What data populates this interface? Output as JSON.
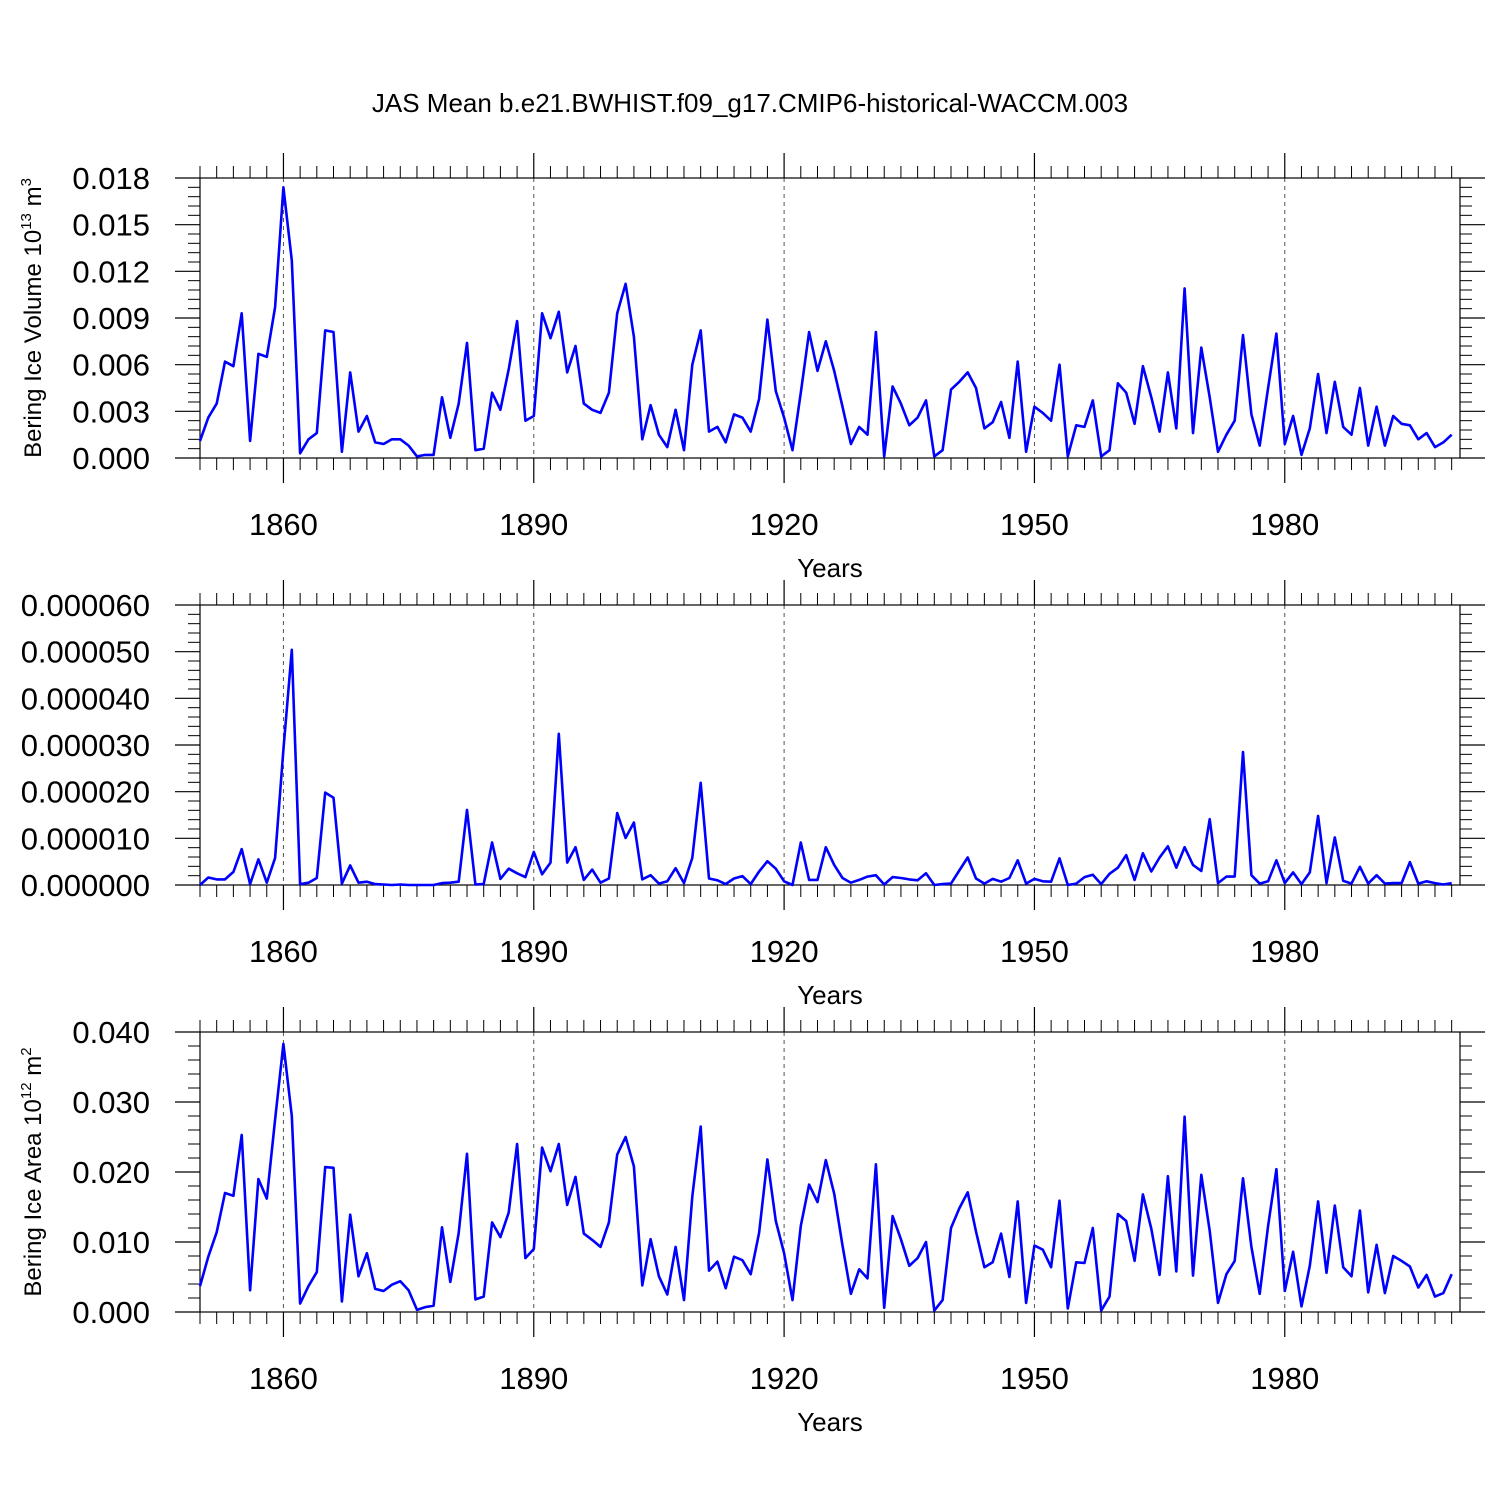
{
  "title": "JAS Mean b.e21.BWHIST.f09_g17.CMIP6-historical-WACCM.003",
  "colors": {
    "line": "#0000ff",
    "axis": "#000000",
    "grid": "#555555"
  },
  "chart_data": [
    {
      "type": "line",
      "ylabel": {
        "text": "Bering Ice Volume 10",
        "exp": "13",
        "unit": " m",
        "unit_exp": "3"
      },
      "xlabel": "Years",
      "xlim": [
        1850,
        2001
      ],
      "ylim": [
        0,
        0.018
      ],
      "xticks": [
        1860,
        1890,
        1920,
        1950,
        1980
      ],
      "xtick_labels": [
        "1860",
        "1890",
        "1920",
        "1950",
        "1980"
      ],
      "yticks": [
        0,
        0.003,
        0.006,
        0.009,
        0.012,
        0.015,
        0.018
      ],
      "ytick_labels": [
        "0.000",
        "0.003",
        "0.006",
        "0.009",
        "0.012",
        "0.015",
        "0.018"
      ],
      "grid": "dashed vertical at major x ticks",
      "x_start": 1850,
      "series": [
        {
          "values": [
            0.0011,
            0.0026,
            0.0035,
            0.0062,
            0.0059,
            0.0093,
            0.0011,
            0.0067,
            0.0065,
            0.0097,
            0.0174,
            0.0127,
            0.0003,
            0.0012,
            0.0016,
            0.0082,
            0.0081,
            0.0004,
            0.0055,
            0.0017,
            0.0027,
            0.001,
            0.0009,
            0.0012,
            0.0012,
            0.0008,
            0.0001,
            0.0002,
            0.0002,
            0.0039,
            0.0013,
            0.0035,
            0.0074,
            0.0005,
            0.0006,
            0.0042,
            0.0031,
            0.0057,
            0.0088,
            0.0024,
            0.0027,
            0.0093,
            0.0077,
            0.0094,
            0.0055,
            0.0072,
            0.0035,
            0.0031,
            0.0029,
            0.0042,
            0.0093,
            0.0112,
            0.0078,
            0.0012,
            0.0034,
            0.0015,
            0.0007,
            0.0031,
            0.0005,
            0.006,
            0.0082,
            0.0017,
            0.002,
            0.001,
            0.0028,
            0.0026,
            0.0017,
            0.0038,
            0.0089,
            0.0043,
            0.0026,
            0.0005,
            0.0042,
            0.0081,
            0.0056,
            0.0075,
            0.0056,
            0.0033,
            0.0009,
            0.002,
            0.0015,
            0.0081,
            0.0001,
            0.0046,
            0.0035,
            0.0021,
            0.0026,
            0.0037,
            0.0001,
            0.0005,
            0.0044,
            0.0049,
            0.0055,
            0.0045,
            0.0019,
            0.0023,
            0.0036,
            0.0013,
            0.0062,
            0.0004,
            0.0033,
            0.0029,
            0.0024,
            0.006,
            0.0001,
            0.0021,
            0.002,
            0.0037,
            0.0001,
            0.0005,
            0.0048,
            0.0042,
            0.0022,
            0.0059,
            0.0039,
            0.0017,
            0.0055,
            0.0019,
            0.0109,
            0.0016,
            0.0071,
            0.0039,
            0.0004,
            0.0015,
            0.0024,
            0.0079,
            0.0028,
            0.0008,
            0.0045,
            0.008,
            0.0009,
            0.0027,
            0.0002,
            0.0019,
            0.0054,
            0.0016,
            0.0049,
            0.002,
            0.0015,
            0.0045,
            0.0008,
            0.0033,
            0.0008,
            0.0027,
            0.0022,
            0.0021,
            0.0012,
            0.0016,
            0.0007,
            0.001,
            0.0015
          ]
        }
      ]
    },
    {
      "type": "line",
      "ylabel": null,
      "xlabel": "Years",
      "xlim": [
        1850,
        2001
      ],
      "ylim": [
        0,
        6e-05
      ],
      "xticks": [
        1860,
        1890,
        1920,
        1950,
        1980
      ],
      "xtick_labels": [
        "1860",
        "1890",
        "1920",
        "1950",
        "1980"
      ],
      "yticks": [
        0,
        1e-05,
        2e-05,
        3e-05,
        4e-05,
        5e-05,
        6e-05
      ],
      "ytick_labels": [
        "0.000000",
        "0.000010",
        "0.000020",
        "0.000030",
        "0.000040",
        "0.000050",
        "0.000060"
      ],
      "grid": "dashed vertical at major x ticks",
      "x_start": 1850,
      "series": [
        {
          "values": [
            0.0,
            1.6e-06,
            1.2e-06,
            1.2e-06,
            2.8e-06,
            7.7e-06,
            2e-07,
            5.5e-06,
            5e-07,
            5.8e-06,
            2.9e-05,
            5.04e-05,
            2e-07,
            5e-07,
            1.5e-06,
            1.98e-05,
            1.87e-05,
            3e-07,
            4.2e-06,
            5e-07,
            7e-07,
            2e-07,
            1e-07,
            0.0,
            1e-07,
            0.0,
            0.0,
            0.0,
            0.0,
            4e-07,
            5e-07,
            7e-07,
            1.61e-05,
            1e-07,
            2e-07,
            9.1e-06,
            1.3e-06,
            3.5e-06,
            2.5e-06,
            1.7e-06,
            7.1e-06,
            2.3e-06,
            4.8e-06,
            3.24e-05,
            4.8e-06,
            8.1e-06,
            1.1e-06,
            3.3e-06,
            5e-07,
            1.4e-06,
            1.54e-05,
            1.01e-05,
            1.34e-05,
            1.2e-06,
            2.1e-06,
            3e-07,
            8e-07,
            3.6e-06,
            4e-07,
            5.8e-06,
            2.19e-05,
            1.4e-06,
            1e-06,
            2e-07,
            1.4e-06,
            1.9e-06,
            2e-07,
            2.9e-06,
            5.1e-06,
            3.5e-06,
            8e-07,
            0.0,
            9.1e-06,
            1.1e-06,
            1.1e-06,
            8.1e-06,
            4.3e-06,
            1.5e-06,
            5e-07,
            1.1e-06,
            1.8e-06,
            2.1e-06,
            1e-07,
            1.7e-06,
            1.5e-06,
            1.2e-06,
            1e-06,
            2.5e-06,
            0.0,
            2e-07,
            3e-07,
            3.1e-06,
            5.9e-06,
            1.4e-06,
            3e-07,
            1.3e-06,
            7e-07,
            1.5e-06,
            5.3e-06,
            3e-07,
            1.3e-06,
            8e-07,
            7e-07,
            5.7e-06,
            0.0,
            3e-07,
            1.7e-06,
            2.2e-06,
            2e-07,
            2.4e-06,
            3.7e-06,
            6.4e-06,
            1.1e-06,
            6.8e-06,
            2.9e-06,
            5.9e-06,
            8.3e-06,
            3.7e-06,
            8.1e-06,
            4.3e-06,
            3e-06,
            1.41e-05,
            4e-07,
            1.8e-06,
            1.8e-06,
            2.85e-05,
            2.1e-06,
            3e-07,
            8e-07,
            5.3e-06,
            4e-07,
            2.7e-06,
            2e-07,
            2.7e-06,
            1.48e-05,
            4e-07,
            1.02e-05,
            9e-07,
            3e-07,
            3.9e-06,
            3e-07,
            2.1e-06,
            3e-07,
            4e-07,
            4e-07,
            4.9e-06,
            3e-07,
            8e-07,
            4e-07,
            1e-07,
            4e-07
          ]
        }
      ]
    },
    {
      "type": "line",
      "ylabel": {
        "text": "Bering Ice Area 10",
        "exp": "12",
        "unit": " m",
        "unit_exp": "2"
      },
      "xlabel": "Years",
      "xlim": [
        1850,
        2001
      ],
      "ylim": [
        0,
        0.04
      ],
      "xticks": [
        1860,
        1890,
        1920,
        1950,
        1980
      ],
      "xtick_labels": [
        "1860",
        "1890",
        "1920",
        "1950",
        "1980"
      ],
      "yticks": [
        0,
        0.01,
        0.02,
        0.03,
        0.04
      ],
      "ytick_labels": [
        "0.000",
        "0.010",
        "0.020",
        "0.030",
        "0.040"
      ],
      "grid": "dashed vertical at major x ticks",
      "x_start": 1850,
      "series": [
        {
          "values": [
            0.0037,
            0.0079,
            0.0114,
            0.017,
            0.0166,
            0.0253,
            0.0031,
            0.019,
            0.0162,
            0.0275,
            0.0383,
            0.028,
            0.0012,
            0.0037,
            0.0057,
            0.0207,
            0.0206,
            0.0015,
            0.0139,
            0.0051,
            0.0084,
            0.0033,
            0.003,
            0.0039,
            0.0044,
            0.0031,
            0.0003,
            0.0007,
            0.0009,
            0.0121,
            0.0043,
            0.0113,
            0.0226,
            0.0018,
            0.0022,
            0.0128,
            0.0107,
            0.0142,
            0.024,
            0.0077,
            0.009,
            0.0235,
            0.0201,
            0.024,
            0.0153,
            0.0193,
            0.0112,
            0.0103,
            0.0093,
            0.0128,
            0.0225,
            0.025,
            0.0208,
            0.0038,
            0.0104,
            0.0051,
            0.0025,
            0.0093,
            0.0017,
            0.0165,
            0.0265,
            0.0059,
            0.0072,
            0.0034,
            0.0079,
            0.0074,
            0.0054,
            0.0113,
            0.0218,
            0.013,
            0.0084,
            0.0017,
            0.0123,
            0.0182,
            0.0157,
            0.0217,
            0.0169,
            0.0095,
            0.0026,
            0.0061,
            0.0048,
            0.0211,
            0.0006,
            0.0137,
            0.0104,
            0.0066,
            0.0077,
            0.01,
            0.0002,
            0.0017,
            0.012,
            0.0148,
            0.0171,
            0.0115,
            0.0064,
            0.0071,
            0.0112,
            0.005,
            0.0158,
            0.0013,
            0.0095,
            0.0089,
            0.0064,
            0.0159,
            0.0005,
            0.0071,
            0.007,
            0.012,
            0.0002,
            0.0022,
            0.014,
            0.013,
            0.0073,
            0.0168,
            0.0119,
            0.0053,
            0.0194,
            0.0058,
            0.0279,
            0.0052,
            0.0196,
            0.0116,
            0.0013,
            0.0054,
            0.0073,
            0.0191,
            0.0093,
            0.0026,
            0.0123,
            0.0204,
            0.003,
            0.0086,
            0.0008,
            0.0066,
            0.0158,
            0.0056,
            0.0152,
            0.0064,
            0.0051,
            0.0145,
            0.0028,
            0.0096,
            0.0027,
            0.008,
            0.0073,
            0.0065,
            0.0035,
            0.0053,
            0.0022,
            0.0027,
            0.0054
          ]
        }
      ]
    }
  ]
}
